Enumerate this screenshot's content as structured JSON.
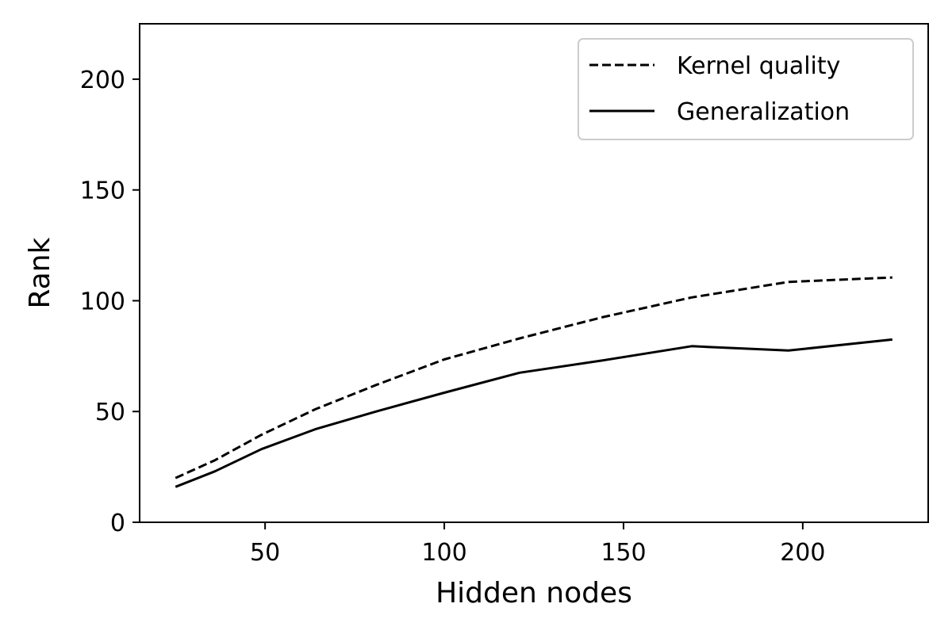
{
  "chart_data": {
    "type": "line",
    "title": "",
    "xlabel": "Hidden nodes",
    "ylabel": "Rank",
    "xlim": [
      15,
      235
    ],
    "ylim": [
      0,
      225
    ],
    "xticks": [
      50,
      100,
      150,
      200
    ],
    "yticks": [
      0,
      50,
      100,
      150,
      200
    ],
    "grid": false,
    "legend_position": "top-right",
    "series": [
      {
        "name": "Kernel quality",
        "style": "dashed",
        "color": "#000000",
        "x": [
          25,
          36,
          49,
          64,
          81,
          100,
          121,
          144,
          169,
          196,
          225
        ],
        "y": [
          20,
          28,
          39.5,
          51,
          62,
          73.5,
          83,
          92.5,
          101.5,
          108.5,
          110.5
        ]
      },
      {
        "name": "Generalization",
        "style": "solid",
        "color": "#000000",
        "x": [
          25,
          36,
          49,
          64,
          81,
          100,
          121,
          144,
          169,
          196,
          225
        ],
        "y": [
          16,
          23,
          33,
          42,
          50,
          58.5,
          67.5,
          73,
          79.5,
          77.5,
          82.5
        ]
      }
    ]
  }
}
